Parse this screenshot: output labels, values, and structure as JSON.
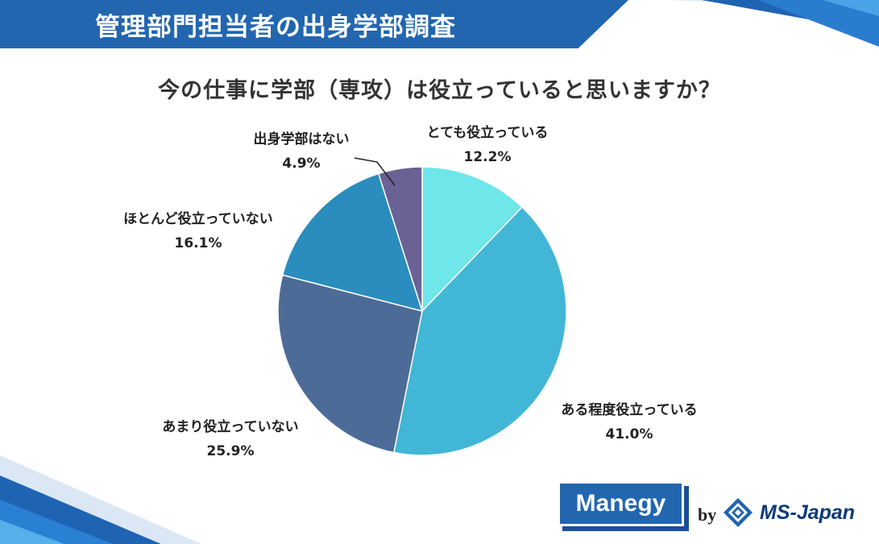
{
  "header": {
    "title": "管理部門担当者の出身学部調査"
  },
  "question": "今の仕事に学部（専攻）は役立っていると思いますか？",
  "colors": {
    "header_band": "#2266b0",
    "slices": [
      "#6ee6ea",
      "#42b6d6",
      "#4c6c97",
      "#2b8dbd",
      "#6a6194"
    ]
  },
  "chart_data": {
    "type": "pie",
    "start": "12 o'clock",
    "direction": "clockwise",
    "categories": [
      "とても役立っている",
      "ある程度役立っている",
      "あまり役立っていない",
      "ほとんど役立っていない",
      "出身学部はない"
    ],
    "values": [
      12.2,
      41.0,
      25.9,
      16.1,
      4.9
    ],
    "value_labels": [
      "12.2%",
      "41.0%",
      "25.9%",
      "16.1%",
      "4.9%"
    ]
  },
  "footer": {
    "brand": "Manegy",
    "by": "by",
    "company": "MS-Japan",
    "company_logo_icon": "ms-japan-diamond-logo"
  }
}
